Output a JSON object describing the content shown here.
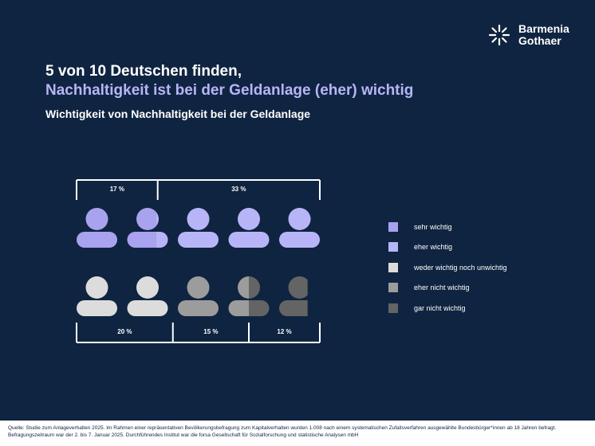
{
  "brand": {
    "line1": "Barmenia",
    "line2": "Gothaer"
  },
  "headline": {
    "line1": "5 von 10 Deutschen finden,",
    "line2": "Nachhaltigkeit ist bei der Geldanlage (eher) wichtig"
  },
  "subtitle": "Wichtigkeit von Nachhaltigkeit bei der Geldanlage",
  "colors": {
    "background": "#0f2440",
    "accent": "#b7b5f7",
    "sehr_wichtig": "#a9a2ef",
    "eher_wichtig": "#b7b5f7",
    "weder": "#dcdcdc",
    "eher_nicht": "#9c9c9c",
    "gar_nicht": "#646464"
  },
  "chart_data": {
    "type": "pictogram",
    "title": "Wichtigkeit von Nachhaltigkeit bei der Geldanlage",
    "unit": "%",
    "person_unit_percent": 10,
    "categories": [
      {
        "label": "sehr wichtig",
        "value": 17,
        "value_label": "17 %",
        "color": "#a9a2ef"
      },
      {
        "label": "eher wichtig",
        "value": 33,
        "value_label": "33 %",
        "color": "#b7b5f7"
      },
      {
        "label": "weder wichtig noch unwichtig",
        "value": 20,
        "value_label": "20 %",
        "color": "#dcdcdc"
      },
      {
        "label": "eher nicht wichtig",
        "value": 15,
        "value_label": "15 %",
        "color": "#9c9c9c"
      },
      {
        "label": "gar nicht wichtig",
        "value": 12,
        "value_label": "12 %",
        "color": "#646464"
      }
    ],
    "top_row_categories": [
      0,
      1
    ],
    "bottom_row_categories": [
      2,
      3,
      4
    ],
    "legend_position": "right"
  },
  "footer": {
    "line1": "Quelle: Studie zum Anlageverhalten 2025. Im Rahmen einer repräsentativen Bevölkerungsbefragung zum Kapitalverhalten wurden 1.008 nach einem systematischen Zufallsverfahren ausgewählte Bundesbürger*innen ab 18 Jahren befragt.",
    "line2": "Befragungszeitraum war der 2. bis 7. Januar 2025. Durchführendes Institut war die forsa Gesellschaft für Sozialforschung und statistische Analysen mbH"
  }
}
